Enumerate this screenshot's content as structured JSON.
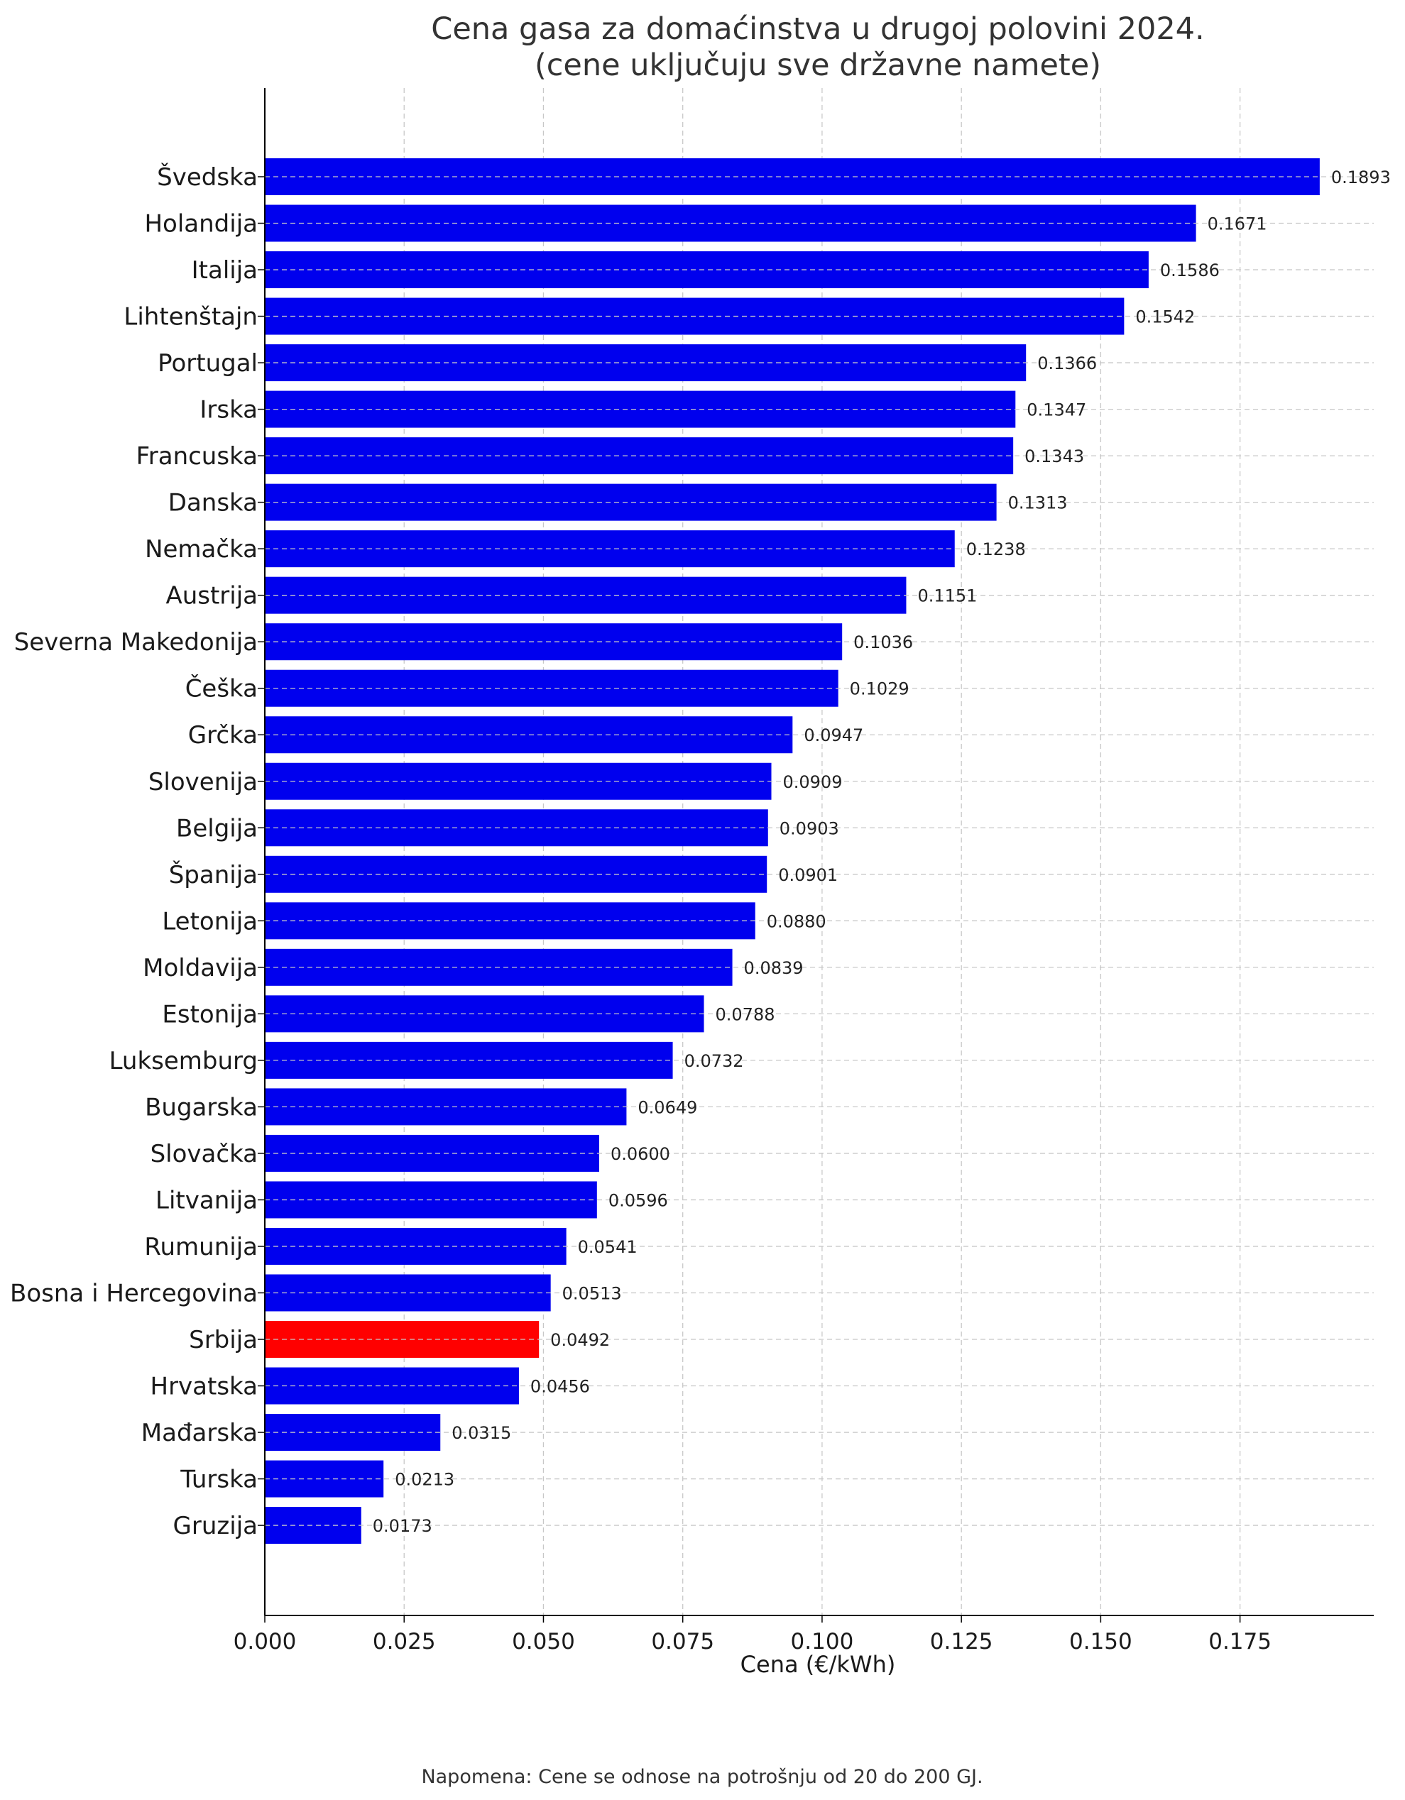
{
  "chart_data": {
    "type": "bar",
    "orientation": "horizontal",
    "title_line1": "Cena gasa za domaćinstva u drugoj polovini 2024.",
    "title_line2": "(cene uključuju sve državne namete)",
    "xlabel": "Cena (€/kWh)",
    "ylabel": "",
    "xlim": [
      0,
      0.199
    ],
    "x_ticks": [
      "0.000",
      "0.025",
      "0.050",
      "0.075",
      "0.100",
      "0.125",
      "0.150",
      "0.175"
    ],
    "grid": true,
    "categories": [
      "Švedska",
      "Holandija",
      "Italija",
      "Lihtenštajn",
      "Portugal",
      "Irska",
      "Francuska",
      "Danska",
      "Nemačka",
      "Austrija",
      "Severna Makedonija",
      "Češka",
      "Grčka",
      "Slovenija",
      "Belgija",
      "Španija",
      "Letonija",
      "Moldavija",
      "Estonija",
      "Luksemburg",
      "Bugarska",
      "Slovačka",
      "Litvanija",
      "Rumunija",
      "Bosna i Hercegovina",
      "Srbija",
      "Hrvatska",
      "Mađarska",
      "Turska",
      "Gruzija"
    ],
    "values": [
      0.1893,
      0.1671,
      0.1586,
      0.1542,
      0.1366,
      0.1347,
      0.1343,
      0.1313,
      0.1238,
      0.1151,
      0.1036,
      0.1029,
      0.0947,
      0.0909,
      0.0903,
      0.0901,
      0.088,
      0.0839,
      0.0788,
      0.0732,
      0.0649,
      0.06,
      0.0596,
      0.0541,
      0.0513,
      0.0492,
      0.0456,
      0.0315,
      0.0213,
      0.0173
    ],
    "value_labels": [
      "0.1893",
      "0.1671",
      "0.1586",
      "0.1542",
      "0.1366",
      "0.1347",
      "0.1343",
      "0.1313",
      "0.1238",
      "0.1151",
      "0.1036",
      "0.1029",
      "0.0947",
      "0.0909",
      "0.0903",
      "0.0901",
      "0.0880",
      "0.0839",
      "0.0788",
      "0.0732",
      "0.0649",
      "0.0600",
      "0.0596",
      "0.0541",
      "0.0513",
      "0.0492",
      "0.0456",
      "0.0315",
      "0.0213",
      "0.0173"
    ],
    "colors": {
      "default": "#0000ee",
      "highlight": "#ff0000",
      "grid": "#c8c8c8",
      "axis": "#000000"
    },
    "highlight_category": "Srbija",
    "note": "Napomena: Cene se odnose na potrošnju od 20 do 200 GJ."
  }
}
